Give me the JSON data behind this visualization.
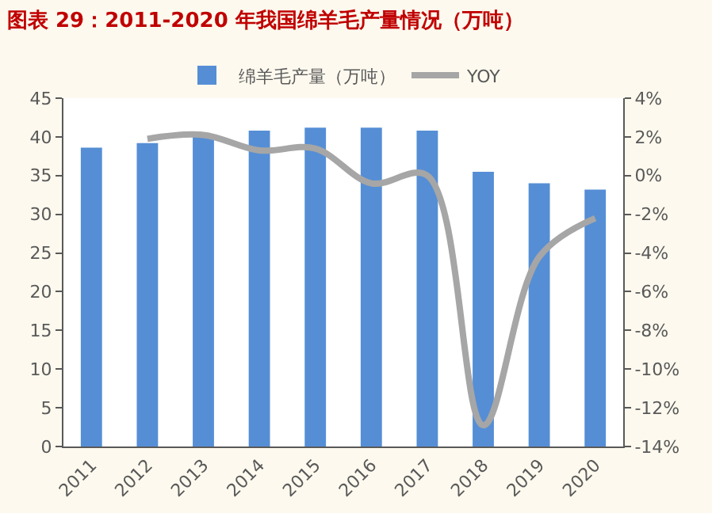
{
  "chart_data": {
    "type": "bar",
    "title": "图表 29：2011-2020 年我国绵羊毛产量情况（万吨）",
    "categories": [
      "2011",
      "2012",
      "2013",
      "2014",
      "2015",
      "2016",
      "2017",
      "2018",
      "2019",
      "2020"
    ],
    "series": [
      {
        "name": "绵羊毛产量（万吨）",
        "color": "#558ed5",
        "values": [
          38.6,
          39.2,
          40.1,
          40.8,
          41.2,
          41.2,
          40.8,
          35.5,
          34.0,
          33.2
        ]
      },
      {
        "name": "YOY",
        "type": "line",
        "axis": "y2",
        "color": "#a6a6a6",
        "values": [
          null,
          1.9,
          2.1,
          1.3,
          1.4,
          -0.4,
          0.0,
          -12.9,
          -4.2,
          -2.2
        ]
      }
    ],
    "ylim": [
      0,
      45
    ],
    "yticks": [
      0,
      5,
      10,
      15,
      20,
      25,
      30,
      35,
      40,
      45
    ],
    "y2lim": [
      -14,
      4
    ],
    "y2ticks": [
      {
        "value": -14,
        "label": "-14%"
      },
      {
        "value": -12,
        "label": "-12%"
      },
      {
        "value": -10,
        "label": "-10%"
      },
      {
        "value": -8,
        "label": "-8%"
      },
      {
        "value": -6,
        "label": "-6%"
      },
      {
        "value": -4,
        "label": "-4%"
      },
      {
        "value": -2,
        "label": "-2%"
      },
      {
        "value": 0,
        "label": "0%"
      },
      {
        "value": 2,
        "label": "2%"
      },
      {
        "value": 4,
        "label": "4%"
      }
    ],
    "grid": false,
    "legend": "top",
    "marker": "none"
  }
}
